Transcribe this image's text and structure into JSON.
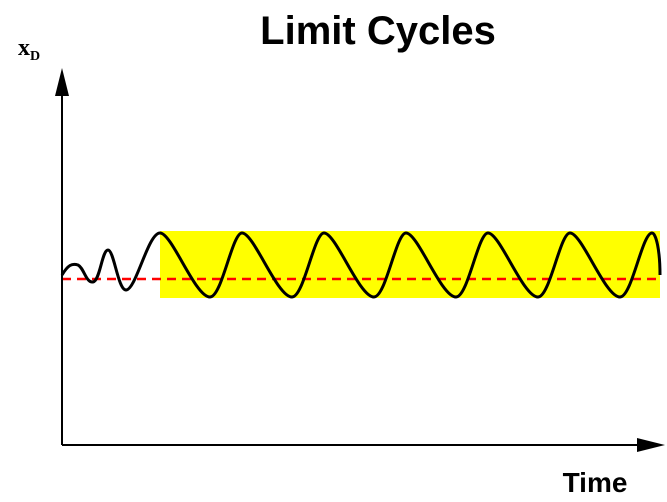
{
  "title": "Limit Cycles",
  "y_axis_label": {
    "base": "x",
    "subscript": "D"
  },
  "x_axis_label": "Time"
}
